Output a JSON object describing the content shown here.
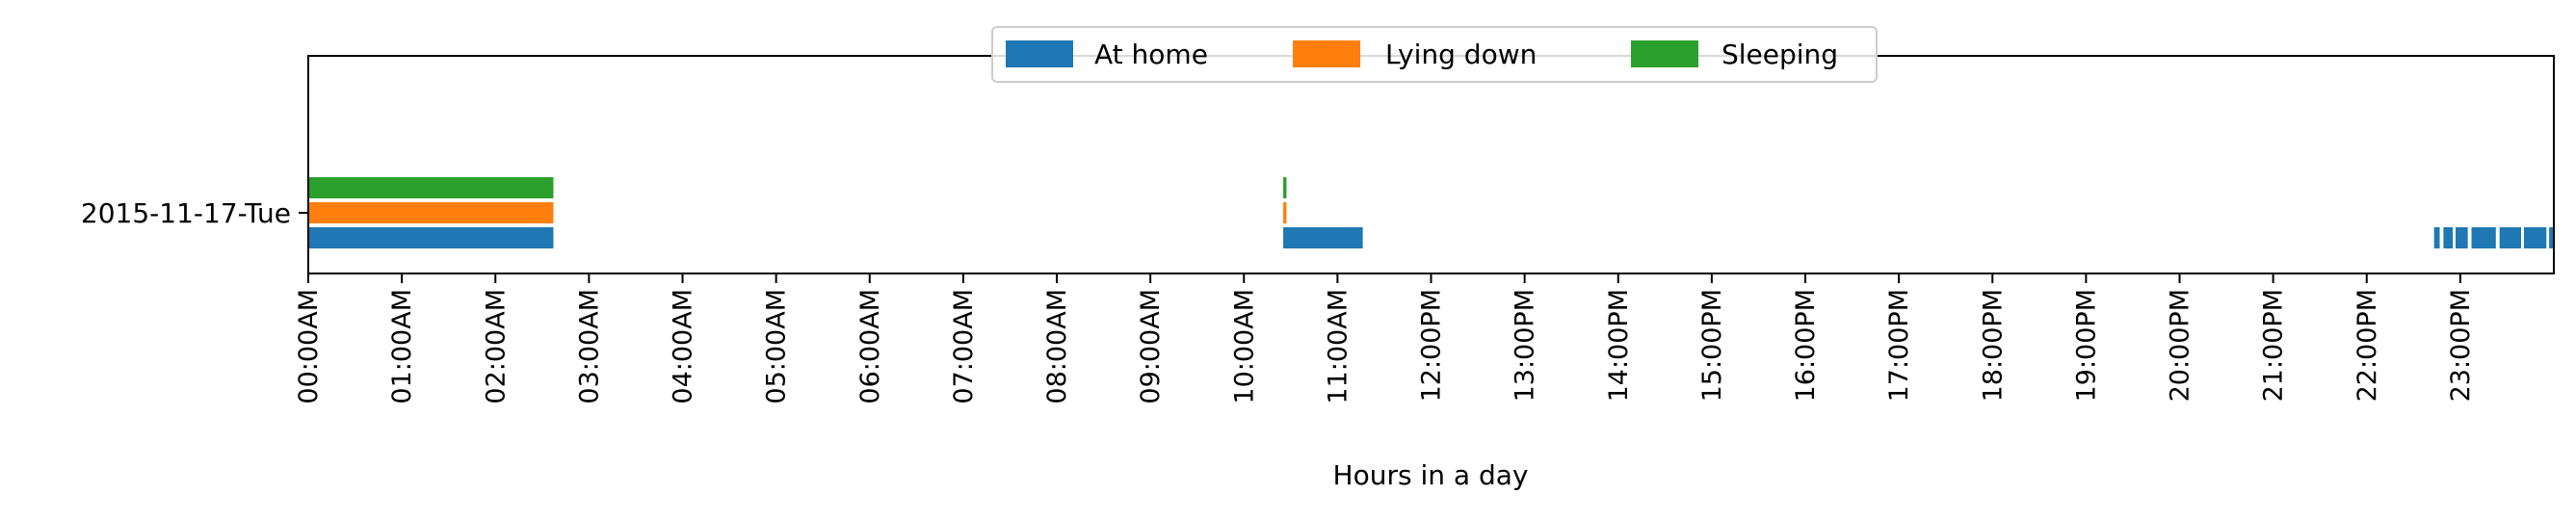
{
  "chart_data": {
    "type": "timeline",
    "title": "",
    "xlabel": "Hours in a day",
    "ylabel": "",
    "xlim": [
      0,
      24
    ],
    "x_ticks": [
      {
        "value": 0,
        "label": "00:00AM"
      },
      {
        "value": 1,
        "label": "01:00AM"
      },
      {
        "value": 2,
        "label": "02:00AM"
      },
      {
        "value": 3,
        "label": "03:00AM"
      },
      {
        "value": 4,
        "label": "04:00AM"
      },
      {
        "value": 5,
        "label": "05:00AM"
      },
      {
        "value": 6,
        "label": "06:00AM"
      },
      {
        "value": 7,
        "label": "07:00AM"
      },
      {
        "value": 8,
        "label": "08:00AM"
      },
      {
        "value": 9,
        "label": "09:00AM"
      },
      {
        "value": 10,
        "label": "10:00AM"
      },
      {
        "value": 11,
        "label": "11:00AM"
      },
      {
        "value": 12,
        "label": "12:00PM"
      },
      {
        "value": 13,
        "label": "13:00PM"
      },
      {
        "value": 14,
        "label": "14:00PM"
      },
      {
        "value": 15,
        "label": "15:00PM"
      },
      {
        "value": 16,
        "label": "16:00PM"
      },
      {
        "value": 17,
        "label": "17:00PM"
      },
      {
        "value": 18,
        "label": "18:00PM"
      },
      {
        "value": 19,
        "label": "19:00PM"
      },
      {
        "value": 20,
        "label": "20:00PM"
      },
      {
        "value": 21,
        "label": "21:00PM"
      },
      {
        "value": 22,
        "label": "22:00PM"
      },
      {
        "value": 23,
        "label": "23:00PM"
      }
    ],
    "categories": [
      "2015-11-17-Tue"
    ],
    "legend": {
      "placement": "top-center",
      "entries": [
        "At home",
        "Lying down",
        "Sleeping"
      ]
    },
    "grid": false,
    "series": [
      {
        "name": "At home",
        "color": "#1f77b4",
        "intervals": [
          [
            0.0,
            2.62
          ],
          [
            10.42,
            11.27
          ],
          [
            22.72,
            22.78
          ],
          [
            22.82,
            22.92
          ],
          [
            22.95,
            23.08
          ],
          [
            23.12,
            23.38
          ],
          [
            23.42,
            23.65
          ],
          [
            23.68,
            23.92
          ],
          [
            23.95,
            24.0
          ]
        ]
      },
      {
        "name": "Lying down",
        "color": "#ff7f0e",
        "intervals": [
          [
            0.0,
            2.62
          ],
          [
            10.42,
            10.455
          ]
        ]
      },
      {
        "name": "Sleeping",
        "color": "#2ca02c",
        "intervals": [
          [
            0.0,
            2.62
          ],
          [
            10.42,
            10.455
          ]
        ]
      }
    ]
  }
}
